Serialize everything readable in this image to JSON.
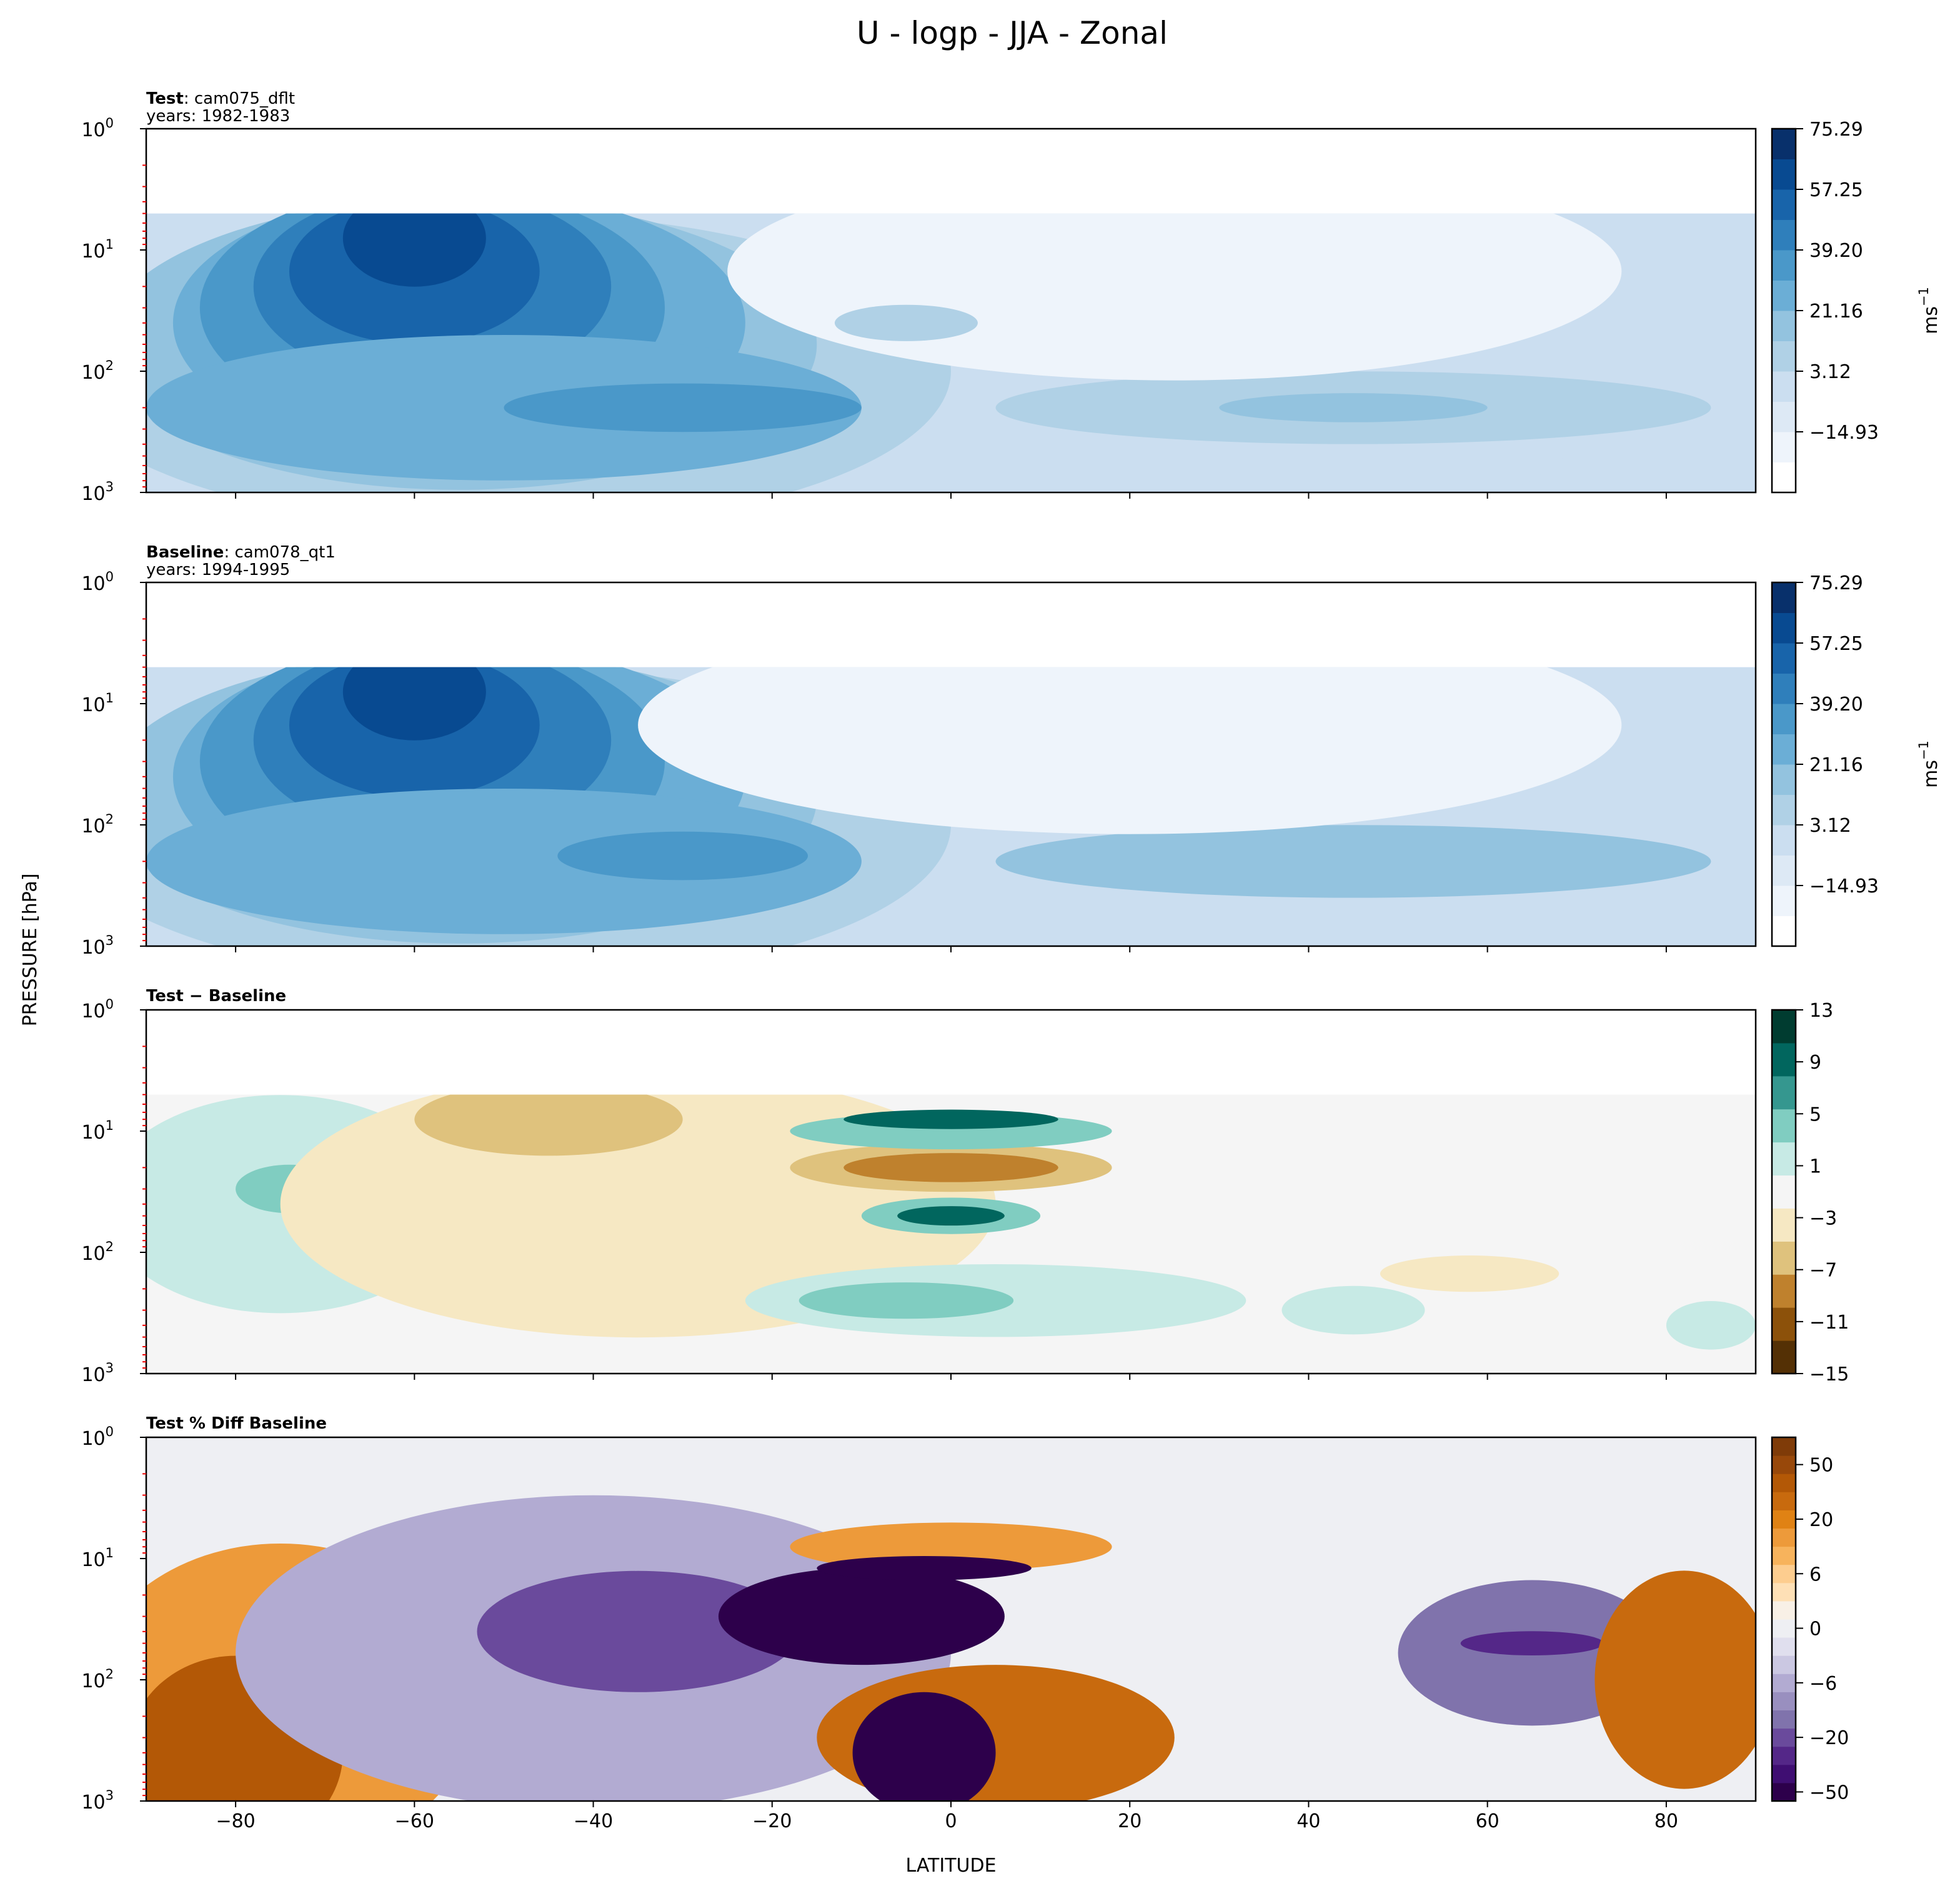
{
  "title": "U - logp - JJA - Zonal",
  "ylabel": "PRESSURE [hPa]",
  "xlabel": "LATITUDE",
  "chart_data": [
    {
      "type": "heatmap",
      "title_bold": "Test",
      "title_rest": ": cam075_dflt",
      "subtitle": "years: 1982-1983",
      "xlim": [
        -90,
        90
      ],
      "ylim": [
        1000,
        1
      ],
      "yscale": "log",
      "colorbar_label": "ms",
      "colorbar_label_exp": "−1",
      "colorbar_ticks": [
        "75.29",
        "57.25",
        "39.20",
        "21.16",
        "3.12",
        "−14.93"
      ],
      "colormap": [
        "#ffffff",
        "#eef4fb",
        "#dde9f5",
        "#cbdef0",
        "#b0d1e6",
        "#93c3df",
        "#6baed6",
        "#4a98c9",
        "#2f7fbb",
        "#1864aa",
        "#084a91",
        "#08306b"
      ]
    },
    {
      "type": "heatmap",
      "title_bold": "Baseline",
      "title_rest": ": cam078_qt1",
      "subtitle": "years: 1994-1995",
      "xlim": [
        -90,
        90
      ],
      "ylim": [
        1000,
        1
      ],
      "yscale": "log",
      "colorbar_label": "ms",
      "colorbar_label_exp": "−1",
      "colorbar_ticks": [
        "75.29",
        "57.25",
        "39.20",
        "21.16",
        "3.12",
        "−14.93"
      ],
      "colormap": [
        "#ffffff",
        "#eef4fb",
        "#dde9f5",
        "#cbdef0",
        "#b0d1e6",
        "#93c3df",
        "#6baed6",
        "#4a98c9",
        "#2f7fbb",
        "#1864aa",
        "#084a91",
        "#08306b"
      ]
    },
    {
      "type": "heatmap",
      "title_bold": "Test − Baseline",
      "xlim": [
        -90,
        90
      ],
      "ylim": [
        1000,
        1
      ],
      "yscale": "log",
      "colorbar_ticks": [
        "13",
        "9",
        "5",
        "1",
        "−3",
        "−7",
        "−11",
        "−15"
      ],
      "colormap": [
        "#543005",
        "#8c510a",
        "#bf812d",
        "#dfc27d",
        "#f6e8c3",
        "#f5f5f5",
        "#c7eae5",
        "#80cdc1",
        "#35978f",
        "#01665e",
        "#003c30"
      ]
    },
    {
      "type": "heatmap",
      "title_bold": "Test % Diff Baseline",
      "xlim": [
        -90,
        90
      ],
      "ylim": [
        1000,
        1
      ],
      "yscale": "log",
      "colorbar_ticks": [
        "50",
        "20",
        "6",
        "0",
        "−6",
        "−20",
        "−50"
      ],
      "colormap": [
        "#2d004b",
        "#3f0e72",
        "#542788",
        "#6a4a9c",
        "#8073ac",
        "#998fbf",
        "#b2abd2",
        "#cbc8e2",
        "#e0dfee",
        "#eeeff3",
        "#f8f0e6",
        "#fee0b6",
        "#fdcd8f",
        "#f7b35c",
        "#ed9a3a",
        "#e08214",
        "#c86a0e",
        "#b35806",
        "#98480a",
        "#7f3b08"
      ]
    }
  ],
  "xticks": [
    "−80",
    "−60",
    "−40",
    "−20",
    "0",
    "20",
    "40",
    "60",
    "80"
  ],
  "xtick_values": [
    -80,
    -60,
    -40,
    -20,
    0,
    20,
    40,
    60,
    80
  ],
  "yticks": [
    {
      "base": "10",
      "exp": "0"
    },
    {
      "base": "10",
      "exp": "1"
    },
    {
      "base": "10",
      "exp": "2"
    },
    {
      "base": "10",
      "exp": "3"
    }
  ]
}
